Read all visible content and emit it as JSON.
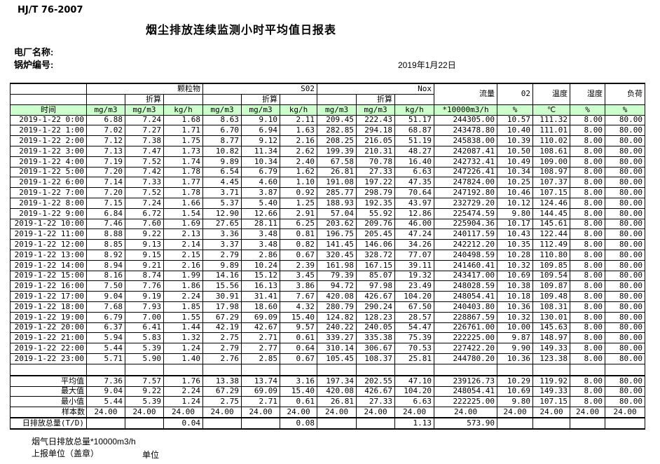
{
  "meta": {
    "standard": "HJ/T  76-2007",
    "title": "烟尘排放连续监测小时平均值日报表",
    "plant_label": "电厂名称:",
    "boiler_label": "锅炉编号:",
    "date": "2019年1月22日"
  },
  "table": {
    "group_headers": {
      "pm": "颗粒物",
      "so2": "S02",
      "nox": "Nox",
      "converted": "折算",
      "flow": "流量",
      "o2": "02",
      "temp": "温度",
      "humidity": "湿度",
      "load": "负荷"
    },
    "units": {
      "time": "时间",
      "mg": "mg/m3",
      "kgh": "kg/h",
      "flow": "*10000m3/h",
      "pct": "%",
      "temp": "℃"
    },
    "rows": [
      {
        "time": "2019-1-22 0:00",
        "values": [
          "6.88",
          "7.24",
          "1.68",
          "8.63",
          "9.10",
          "2.11",
          "209.45",
          "222.43",
          "51.17",
          "244305.00",
          "10.57",
          "111.32",
          "8.00",
          "80.00"
        ]
      },
      {
        "time": "2019-1-22 1:00",
        "values": [
          "7.02",
          "7.27",
          "1.71",
          "6.70",
          "6.94",
          "1.63",
          "282.85",
          "294.18",
          "68.87",
          "243478.80",
          "10.40",
          "111.01",
          "8.00",
          "80.00"
        ]
      },
      {
        "time": "2019-1-22 2:00",
        "values": [
          "7.12",
          "7.38",
          "1.75",
          "8.77",
          "9.12",
          "2.16",
          "208.25",
          "216.05",
          "51.19",
          "245838.00",
          "10.39",
          "110.02",
          "8.00",
          "80.00"
        ]
      },
      {
        "time": "2019-1-22 3:00",
        "values": [
          "7.13",
          "7.47",
          "1.73",
          "10.82",
          "11.34",
          "2.62",
          "199.39",
          "210.31",
          "48.27",
          "242087.41",
          "10.50",
          "108.61",
          "8.00",
          "80.00"
        ]
      },
      {
        "time": "2019-1-22 4:00",
        "values": [
          "7.19",
          "7.52",
          "1.74",
          "9.89",
          "10.34",
          "2.40",
          "67.58",
          "70.78",
          "16.40",
          "242732.41",
          "10.49",
          "109.00",
          "8.00",
          "80.00"
        ]
      },
      {
        "time": "2019-1-22 5:00",
        "values": [
          "7.20",
          "7.42",
          "1.78",
          "6.54",
          "6.79",
          "1.62",
          "26.81",
          "27.33",
          "6.63",
          "247226.41",
          "10.34",
          "108.97",
          "8.00",
          "80.00"
        ]
      },
      {
        "time": "2019-1-22 6:00",
        "values": [
          "7.14",
          "7.33",
          "1.77",
          "4.45",
          "4.60",
          "1.10",
          "191.08",
          "197.22",
          "47.35",
          "247824.00",
          "10.25",
          "107.37",
          "8.00",
          "80.00"
        ]
      },
      {
        "time": "2019-1-22 7:00",
        "values": [
          "7.20",
          "7.52",
          "1.78",
          "3.71",
          "3.87",
          "0.92",
          "285.77",
          "298.79",
          "70.64",
          "247192.80",
          "10.46",
          "107.15",
          "8.00",
          "80.00"
        ]
      },
      {
        "time": "2019-1-22 8:00",
        "values": [
          "7.15",
          "7.24",
          "1.66",
          "5.37",
          "5.40",
          "1.25",
          "188.93",
          "192.35",
          "43.97",
          "232729.20",
          "10.12",
          "124.46",
          "8.00",
          "80.00"
        ]
      },
      {
        "time": "2019-1-22 9:00",
        "values": [
          "6.84",
          "6.72",
          "1.54",
          "12.90",
          "12.66",
          "2.91",
          "57.04",
          "55.92",
          "12.86",
          "225474.59",
          "9.80",
          "144.45",
          "8.00",
          "80.00"
        ]
      },
      {
        "time": "2019-1-22 10:00",
        "values": [
          "7.46",
          "7.60",
          "1.69",
          "27.65",
          "28.11",
          "6.25",
          "203.62",
          "209.76",
          "46.00",
          "225904.36",
          "10.17",
          "145.61",
          "8.00",
          "80.00"
        ]
      },
      {
        "time": "2019-1-22 11:00",
        "values": [
          "8.88",
          "9.22",
          "2.13",
          "3.36",
          "3.48",
          "0.81",
          "196.75",
          "205.45",
          "47.24",
          "240117.59",
          "10.43",
          "122.44",
          "8.00",
          "80.00"
        ]
      },
      {
        "time": "2019-1-22 12:00",
        "values": [
          "8.85",
          "9.13",
          "2.14",
          "3.37",
          "3.48",
          "0.82",
          "141.45",
          "146.06",
          "34.26",
          "242212.20",
          "10.35",
          "112.49",
          "8.00",
          "80.00"
        ]
      },
      {
        "time": "2019-1-22 13:00",
        "values": [
          "8.92",
          "9.15",
          "2.15",
          "2.79",
          "2.86",
          "0.67",
          "320.45",
          "328.72",
          "77.07",
          "240498.59",
          "10.28",
          "110.80",
          "8.00",
          "80.00"
        ]
      },
      {
        "time": "2019-1-22 14:00",
        "values": [
          "8.94",
          "9.21",
          "2.16",
          "9.89",
          "10.24",
          "2.39",
          "161.98",
          "167.15",
          "39.11",
          "241460.41",
          "10.32",
          "109.85",
          "8.00",
          "80.00"
        ]
      },
      {
        "time": "2019-1-22 15:00",
        "values": [
          "8.16",
          "8.74",
          "1.99",
          "14.16",
          "15.12",
          "3.45",
          "79.39",
          "85.07",
          "19.32",
          "243417.00",
          "10.69",
          "109.54",
          "8.00",
          "80.00"
        ]
      },
      {
        "time": "2019-1-22 16:00",
        "values": [
          "7.50",
          "7.76",
          "1.86",
          "15.56",
          "16.13",
          "3.86",
          "94.72",
          "97.98",
          "23.49",
          "248028.59",
          "10.38",
          "109.87",
          "8.00",
          "80.00"
        ]
      },
      {
        "time": "2019-1-22 17:00",
        "values": [
          "9.04",
          "9.19",
          "2.24",
          "30.91",
          "31.41",
          "7.67",
          "420.08",
          "426.67",
          "104.20",
          "248054.41",
          "10.18",
          "109.48",
          "8.00",
          "80.00"
        ]
      },
      {
        "time": "2019-1-22 18:00",
        "values": [
          "7.68",
          "7.93",
          "1.85",
          "17.98",
          "18.60",
          "4.32",
          "280.79",
          "290.24",
          "67.50",
          "240403.80",
          "10.36",
          "108.31",
          "8.00",
          "80.00"
        ]
      },
      {
        "time": "2019-1-22 19:00",
        "values": [
          "6.79",
          "7.00",
          "1.55",
          "67.29",
          "69.09",
          "15.40",
          "124.82",
          "128.23",
          "28.57",
          "228867.59",
          "10.32",
          "130.01",
          "8.00",
          "80.00"
        ]
      },
      {
        "time": "2019-1-22 20:00",
        "values": [
          "6.37",
          "6.41",
          "1.44",
          "42.19",
          "42.67",
          "9.57",
          "240.22",
          "240.05",
          "54.47",
          "226761.00",
          "10.00",
          "145.63",
          "8.00",
          "80.00"
        ]
      },
      {
        "time": "2019-1-22 21:00",
        "values": [
          "5.94",
          "5.83",
          "1.32",
          "2.75",
          "2.71",
          "0.61",
          "339.27",
          "335.38",
          "75.39",
          "222225.00",
          "9.87",
          "148.97",
          "8.00",
          "80.00"
        ]
      },
      {
        "time": "2019-1-22 22:00",
        "values": [
          "5.44",
          "5.39",
          "1.24",
          "2.79",
          "2.77",
          "0.64",
          "310.14",
          "306.67",
          "70.53",
          "227422.20",
          "9.90",
          "149.33",
          "8.00",
          "80.00"
        ]
      },
      {
        "time": "2019-1-22 23:00",
        "values": [
          "5.71",
          "5.90",
          "1.40",
          "2.76",
          "2.85",
          "0.67",
          "105.45",
          "108.37",
          "25.81",
          "244780.20",
          "10.36",
          "123.38",
          "8.00",
          "80.00"
        ]
      }
    ],
    "summary": [
      {
        "label": "平均值",
        "values": [
          "7.36",
          "7.57",
          "1.76",
          "13.38",
          "13.74",
          "3.16",
          "197.34",
          "202.55",
          "47.10",
          "239126.73",
          "10.29",
          "119.92",
          "8.00",
          "80.00"
        ]
      },
      {
        "label": "最大值",
        "values": [
          "9.04",
          "9.22",
          "2.24",
          "67.29",
          "69.09",
          "15.40",
          "420.08",
          "426.67",
          "104.20",
          "248054.41",
          "10.69",
          "149.33",
          "8.00",
          "80.00"
        ]
      },
      {
        "label": "最小值",
        "values": [
          "5.44",
          "5.39",
          "1.24",
          "2.75",
          "2.71",
          "0.61",
          "26.81",
          "27.33",
          "6.63",
          "222225.00",
          "9.80",
          "107.15",
          "8.00",
          "80.00"
        ]
      },
      {
        "label": "样本数",
        "values": [
          "24.00",
          "24.00",
          "24.00",
          "24.00",
          "24.00",
          "24.00",
          "24.00",
          "24.00",
          "24.00",
          "24.00",
          "24.00",
          "24.00",
          "24.00",
          "24.00"
        ]
      },
      {
        "label": "日排放总量(T/D)",
        "values": [
          "",
          "",
          "0.04",
          "",
          "",
          "0.08",
          "",
          "",
          "1.13",
          "573.90",
          "",
          "",
          "",
          ""
        ]
      }
    ]
  },
  "footer": {
    "line1": "烟气日排放总量*10000m3/h",
    "line2": "上报单位（盖章）",
    "unit": "单位"
  }
}
